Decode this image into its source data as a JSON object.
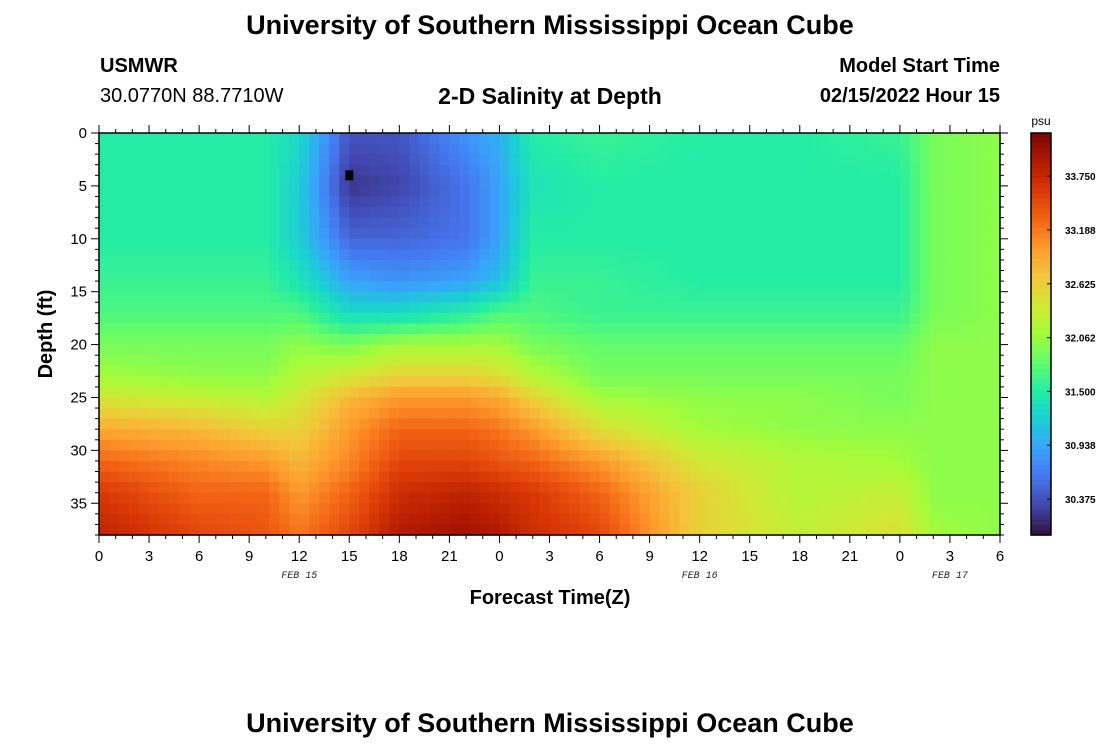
{
  "header": {
    "title": "University of Southern Mississippi Ocean Cube",
    "station": "USMWR",
    "coordinates": "30.0770N  88.7710W",
    "subtitle": "2-D Salinity at Depth",
    "model_start_label": "Model Start Time",
    "model_start_value": "02/15/2022 Hour 15"
  },
  "footer": {
    "title": "University of Southern Mississippi Ocean Cube"
  },
  "chart_data": {
    "type": "heatmap",
    "xlabel": "Forecast Time(Z)",
    "ylabel": "Depth (ft)",
    "colorbar_unit": "psu",
    "x_tick_labels": [
      "0",
      "3",
      "6",
      "9",
      "12",
      "15",
      "18",
      "21",
      "0",
      "3",
      "6",
      "9",
      "12",
      "15",
      "18",
      "21",
      "0",
      "3",
      "6"
    ],
    "x_range_hours": [
      0,
      54
    ],
    "date_labels": [
      {
        "text": "FEB 15",
        "hour": 12
      },
      {
        "text": "FEB 16",
        "hour": 36
      },
      {
        "text": "FEB 17",
        "hour": 51
      }
    ],
    "y_ticks": [
      0,
      5,
      10,
      15,
      20,
      25,
      30,
      35
    ],
    "y_range_ft": [
      0,
      38
    ],
    "colorbar_ticks": [
      "33.750",
      "33.188",
      "32.625",
      "32.062",
      "31.500",
      "30.938",
      "30.375"
    ],
    "colorbar_range_psu": [
      30.0,
      34.2
    ],
    "colors": [
      "#30123b",
      "#4145ab",
      "#4675ed",
      "#39a2fc",
      "#1bcfd4",
      "#24eca6",
      "#61fc6c",
      "#a4fc3b",
      "#d1e834",
      "#f3c63a",
      "#fe9b2d",
      "#f36315",
      "#d93806",
      "#b11901",
      "#7a0403"
    ],
    "marker": {
      "hour": 15,
      "depth_ft": 4
    },
    "salinity_grid": {
      "x_hours": [
        0,
        6,
        10,
        12,
        15,
        18,
        22,
        24,
        26,
        30,
        36,
        42,
        48,
        50,
        54
      ],
      "y_depth_ft": [
        0,
        5,
        10,
        14,
        17,
        20,
        23,
        25,
        28,
        31,
        34,
        38
      ],
      "values": [
        [
          31.5,
          31.5,
          31.5,
          31.3,
          30.4,
          30.4,
          30.8,
          31.0,
          31.5,
          31.6,
          31.5,
          31.5,
          31.6,
          31.9,
          32.0
        ],
        [
          31.5,
          31.5,
          31.5,
          31.2,
          30.2,
          30.3,
          30.6,
          30.9,
          31.4,
          31.5,
          31.5,
          31.5,
          31.5,
          31.9,
          32.0
        ],
        [
          31.5,
          31.5,
          31.5,
          31.2,
          30.5,
          30.5,
          30.6,
          30.9,
          31.5,
          31.5,
          31.5,
          31.5,
          31.5,
          31.9,
          32.0
        ],
        [
          31.6,
          31.6,
          31.6,
          31.4,
          30.9,
          30.8,
          30.9,
          31.1,
          31.6,
          31.6,
          31.5,
          31.5,
          31.5,
          31.9,
          32.0
        ],
        [
          31.7,
          31.7,
          31.7,
          31.7,
          31.3,
          31.3,
          31.5,
          31.7,
          31.7,
          31.6,
          31.6,
          31.6,
          31.6,
          31.9,
          32.0
        ],
        [
          31.9,
          31.9,
          31.9,
          32.0,
          31.9,
          32.1,
          32.1,
          32.1,
          31.9,
          31.8,
          31.8,
          31.8,
          31.8,
          32.0,
          32.0
        ],
        [
          32.1,
          32.0,
          32.0,
          32.2,
          32.4,
          32.6,
          32.6,
          32.5,
          32.2,
          31.9,
          31.9,
          31.9,
          31.9,
          32.0,
          32.0
        ],
        [
          32.4,
          32.3,
          32.2,
          32.4,
          32.8,
          33.0,
          33.0,
          32.9,
          32.6,
          32.1,
          32.0,
          32.0,
          31.9,
          32.0,
          32.0
        ],
        [
          32.9,
          32.8,
          32.6,
          32.6,
          33.0,
          33.3,
          33.3,
          33.2,
          33.0,
          32.5,
          32.1,
          32.0,
          32.0,
          32.0,
          32.0
        ],
        [
          33.3,
          33.1,
          33.0,
          32.8,
          33.1,
          33.5,
          33.5,
          33.4,
          33.3,
          33.0,
          32.4,
          32.2,
          32.1,
          32.0,
          32.0
        ],
        [
          33.6,
          33.3,
          33.3,
          33.0,
          33.3,
          33.7,
          33.8,
          33.7,
          33.6,
          33.3,
          32.6,
          32.2,
          32.3,
          32.0,
          32.0
        ],
        [
          33.8,
          33.5,
          33.4,
          33.2,
          33.5,
          33.9,
          34.0,
          33.9,
          33.7,
          33.5,
          32.6,
          32.3,
          32.5,
          32.1,
          32.0
        ]
      ]
    }
  }
}
